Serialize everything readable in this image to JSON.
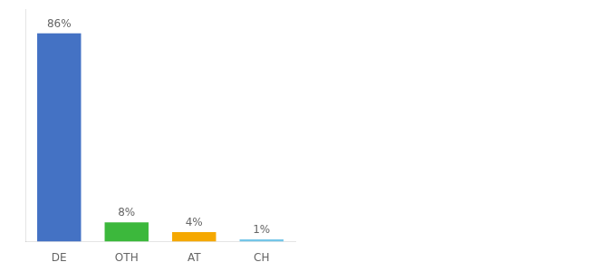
{
  "chart_data": {
    "type": "bar",
    "categories": [
      "DE",
      "OTH",
      "AT",
      "CH"
    ],
    "values": [
      86,
      8,
      4,
      1
    ],
    "value_labels": [
      "86%",
      "8%",
      "4%",
      "1%"
    ],
    "colors": [
      "#4472c4",
      "#3cb83c",
      "#f5a800",
      "#74c6e8"
    ],
    "ylim": [
      0,
      96
    ],
    "data_labels": true,
    "tick_labels": "x",
    "grid": false
  }
}
